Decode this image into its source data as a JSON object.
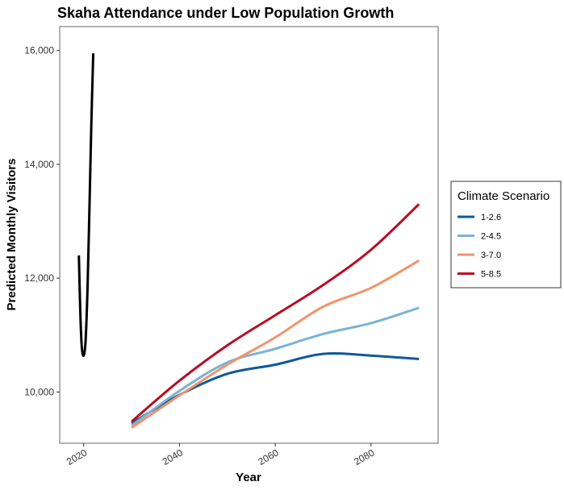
{
  "chart_data": {
    "type": "line",
    "title": "Skaha Attendance under Low Population Growth",
    "xlabel": "Year",
    "ylabel": "Predicted Monthly Visitors",
    "xlim": [
      2015,
      2094
    ],
    "ylim": [
      9100,
      16420
    ],
    "x_ticks": [
      2020,
      2040,
      2060,
      2080
    ],
    "x_tick_labels": [
      "2020",
      "2040",
      "2060",
      "2080"
    ],
    "y_ticks": [
      10000,
      12000,
      14000,
      16000
    ],
    "y_tick_labels": [
      "10,000",
      "12,000",
      "14,000",
      "16,000"
    ],
    "grid": false,
    "legend": {
      "title": "Climate Scenario",
      "placement": "right"
    },
    "historical": {
      "color": "#000000",
      "x": [
        2019,
        2019.3,
        2019.6,
        2020,
        2020.4,
        2020.8,
        2021.2,
        2021.6,
        2022
      ],
      "y": [
        12400,
        11400,
        10800,
        10640,
        10900,
        11800,
        13200,
        14700,
        15950
      ]
    },
    "series": [
      {
        "name": "1-2.6",
        "color": "#10599a",
        "x": [
          2030,
          2040,
          2050,
          2060,
          2070,
          2080,
          2090
        ],
        "y": [
          9450,
          9950,
          10320,
          10480,
          10670,
          10640,
          10580
        ]
      },
      {
        "name": "2-4.5",
        "color": "#7ab3d3",
        "x": [
          2030,
          2040,
          2050,
          2060,
          2070,
          2080,
          2090
        ],
        "y": [
          9410,
          10020,
          10520,
          10760,
          11020,
          11210,
          11480
        ]
      },
      {
        "name": "3-7.0",
        "color": "#f0946b",
        "x": [
          2030,
          2040,
          2050,
          2060,
          2070,
          2080,
          2090
        ],
        "y": [
          9370,
          9940,
          10480,
          10960,
          11500,
          11830,
          12310
        ]
      },
      {
        "name": "5-8.5",
        "color": "#b90c23",
        "x": [
          2030,
          2040,
          2050,
          2060,
          2070,
          2080,
          2090
        ],
        "y": [
          9480,
          10200,
          10820,
          11350,
          11880,
          12500,
          13300
        ]
      }
    ]
  }
}
